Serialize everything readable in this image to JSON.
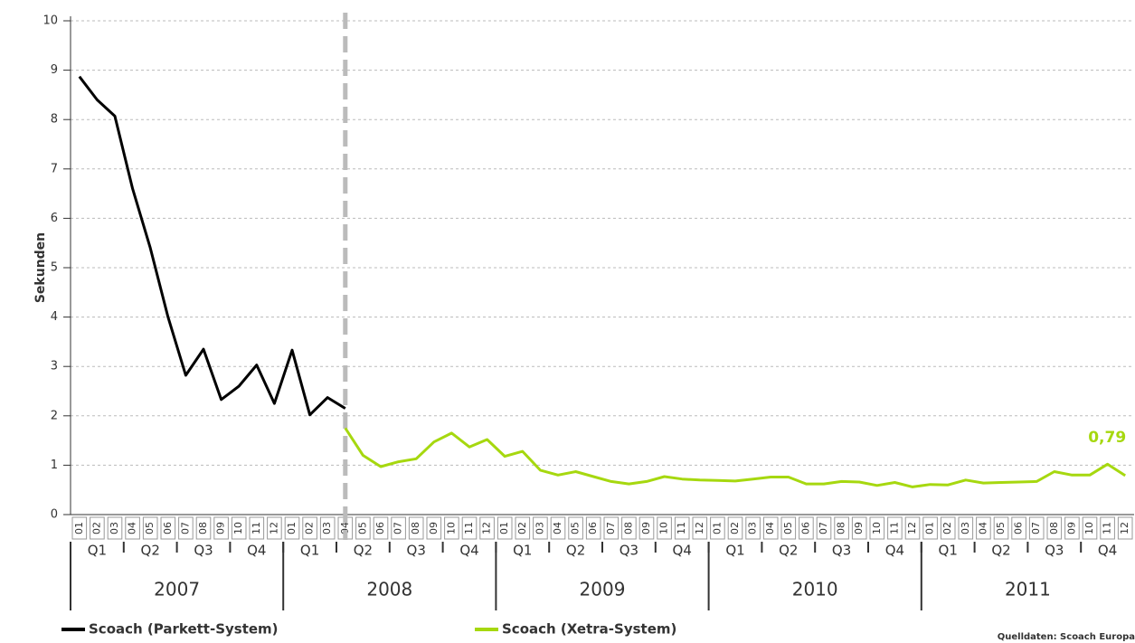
{
  "chart_data": {
    "type": "line",
    "y_label": "Sekunden",
    "source": "Quelldaten: Scoach Europa",
    "categories": [
      "01",
      "02",
      "03",
      "04",
      "05",
      "06",
      "07",
      "08",
      "09",
      "10",
      "11",
      "12",
      "01",
      "02",
      "03",
      "04",
      "05",
      "06",
      "07",
      "08",
      "09",
      "10",
      "11",
      "12",
      "01",
      "02",
      "03",
      "04",
      "05",
      "06",
      "07",
      "08",
      "09",
      "10",
      "11",
      "12",
      "01",
      "02",
      "03",
      "04",
      "05",
      "06",
      "07",
      "08",
      "09",
      "10",
      "11",
      "12",
      "01",
      "02",
      "03",
      "04",
      "05",
      "06",
      "07",
      "08",
      "09",
      "10",
      "11",
      "12"
    ],
    "quarters": [
      "Q1",
      "Q2",
      "Q3",
      "Q4",
      "Q1",
      "Q2",
      "Q3",
      "Q4",
      "Q1",
      "Q2",
      "Q3",
      "Q4",
      "Q1",
      "Q2",
      "Q3",
      "Q4",
      "Q1",
      "Q2",
      "Q3",
      "Q4"
    ],
    "years": [
      "2007",
      "2008",
      "2009",
      "2010",
      "2011"
    ],
    "series": [
      {
        "name": "Scoach (Parkett-System)",
        "color": "#000000",
        "values": [
          8.87,
          8.4,
          8.07,
          6.6,
          5.4,
          4.0,
          2.82,
          3.35,
          2.33,
          2.6,
          3.03,
          2.25,
          3.33,
          2.02,
          2.37,
          2.15,
          null,
          null,
          null,
          null,
          null,
          null,
          null,
          null,
          null,
          null,
          null,
          null,
          null,
          null,
          null,
          null,
          null,
          null,
          null,
          null,
          null,
          null,
          null,
          null,
          null,
          null,
          null,
          null,
          null,
          null,
          null,
          null,
          null,
          null,
          null,
          null,
          null,
          null,
          null,
          null,
          null,
          null,
          null,
          null
        ]
      },
      {
        "name": "Scoach (Xetra-System)",
        "color": "#a6d80f",
        "values": [
          null,
          null,
          null,
          null,
          null,
          null,
          null,
          null,
          null,
          null,
          null,
          null,
          null,
          null,
          null,
          1.75,
          1.2,
          0.97,
          1.07,
          1.13,
          1.47,
          1.65,
          1.37,
          1.52,
          1.18,
          1.28,
          0.9,
          0.8,
          0.87,
          0.77,
          0.67,
          0.62,
          0.67,
          0.77,
          0.72,
          0.7,
          0.69,
          0.68,
          0.72,
          0.76,
          0.76,
          0.62,
          0.62,
          0.67,
          0.66,
          0.59,
          0.65,
          0.56,
          0.61,
          0.6,
          0.7,
          0.64,
          0.65,
          0.66,
          0.67,
          0.87,
          0.8,
          0.8,
          1.02,
          0.79
        ],
        "value_labels": [
          null,
          null,
          null,
          null,
          null,
          null,
          null,
          null,
          null,
          null,
          null,
          null,
          null,
          null,
          null,
          null,
          null,
          null,
          null,
          null,
          null,
          null,
          null,
          null,
          null,
          null,
          null,
          null,
          null,
          null,
          null,
          null,
          null,
          null,
          null,
          null,
          null,
          null,
          null,
          null,
          null,
          null,
          null,
          null,
          null,
          null,
          null,
          null,
          null,
          null,
          null,
          null,
          null,
          null,
          null,
          null,
          null,
          null,
          null,
          "0,79"
        ]
      }
    ],
    "ylim": [
      0,
      10
    ],
    "yticks": [
      0,
      1,
      2,
      3,
      4,
      5,
      6,
      7,
      8,
      9,
      10
    ],
    "grid": true
  }
}
